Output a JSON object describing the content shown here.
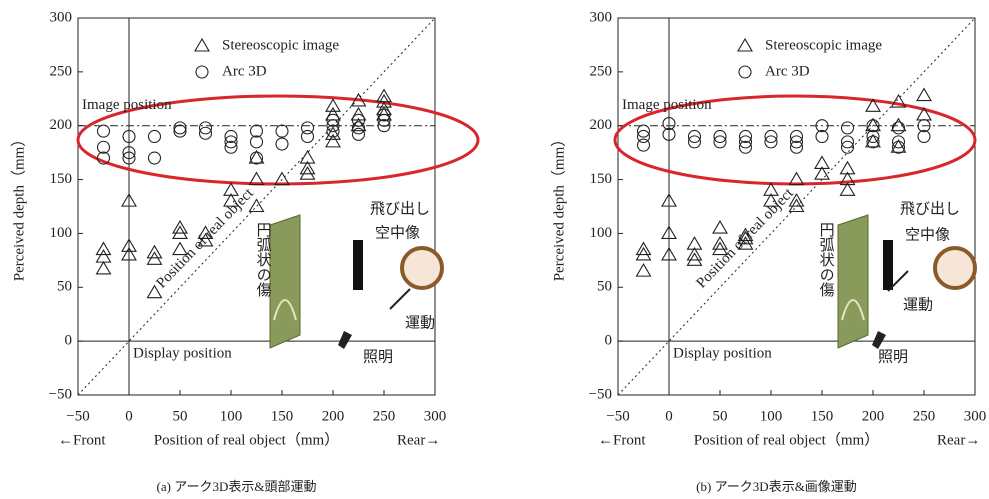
{
  "chart_data": [
    {
      "type": "scatter",
      "xlim": [
        -50,
        300
      ],
      "ylim": [
        -50,
        300
      ],
      "xticks": [
        {
          "value": -50,
          "label": "−50"
        },
        0,
        50,
        100,
        150,
        200,
        250,
        300
      ],
      "yticks": [
        {
          "value": -50,
          "label": "−50"
        },
        0,
        50,
        100,
        150,
        200,
        250,
        300
      ],
      "ylabel": "Perceived depth（mm）",
      "xlabel": [
        "←Front",
        "Position of real object（mm）",
        "Rear→"
      ],
      "image_position": 200,
      "annotations": {
        "image": "Image position",
        "display": "Display position",
        "diagonal": "Position of real object"
      },
      "illustration": {
        "popout": "飛び出し",
        "aerial": "空中像",
        "scratch": "円弧状の傷",
        "light": "照明",
        "motion": "運動"
      },
      "caption": "(a) アーク3D表示&頭部運動",
      "series": [
        {
          "name": "Stereoscopic image",
          "marker": "triangle",
          "color": "#222",
          "x": [
            -25,
            -25,
            -25,
            0,
            0,
            0,
            25,
            25,
            25,
            50,
            50,
            50,
            75,
            75,
            100,
            100,
            125,
            125,
            125,
            150,
            175,
            175,
            175,
            200,
            200,
            200,
            200,
            225,
            225,
            225,
            250,
            250,
            250,
            250
          ],
          "values": [
            85,
            78,
            67,
            130,
            88,
            80,
            82,
            76,
            45,
            105,
            100,
            85,
            100,
            93,
            140,
            130,
            170,
            150,
            125,
            150,
            170,
            160,
            155,
            218,
            210,
            192,
            185,
            223,
            210,
            200,
            227,
            222,
            215,
            210
          ]
        },
        {
          "name": "Arc 3D",
          "marker": "circle",
          "color": "#222",
          "x": [
            -25,
            -25,
            -25,
            0,
            0,
            0,
            25,
            25,
            50,
            50,
            75,
            75,
            100,
            100,
            100,
            125,
            125,
            125,
            150,
            150,
            175,
            175,
            200,
            200,
            200,
            225,
            225,
            225,
            250,
            250,
            250
          ],
          "values": [
            195,
            180,
            170,
            190,
            175,
            170,
            190,
            170,
            198,
            195,
            198,
            193,
            190,
            185,
            180,
            195,
            185,
            170,
            195,
            183,
            198,
            190,
            205,
            200,
            195,
            205,
            198,
            192,
            210,
            205,
            200
          ]
        }
      ]
    },
    {
      "type": "scatter",
      "xlim": [
        -50,
        300
      ],
      "ylim": [
        -50,
        300
      ],
      "xticks": [
        {
          "value": -50,
          "label": "−50"
        },
        0,
        50,
        100,
        150,
        200,
        250,
        300
      ],
      "yticks": [
        {
          "value": -50,
          "label": "−50"
        },
        0,
        50,
        100,
        150,
        200,
        250,
        300
      ],
      "ylabel": "Perceived depth（mm）",
      "xlabel": [
        "←Front",
        "Position of real object（mm）",
        "Rear→"
      ],
      "image_position": 200,
      "annotations": {
        "image": "Image position",
        "display": "Display position",
        "diagonal": "Position of real object"
      },
      "illustration": {
        "popout": "飛び出し",
        "aerial": "空中像",
        "scratch": "円弧状の傷",
        "light": "照明",
        "motion": "運動"
      },
      "caption": "(b) アーク3D表示&画像運動",
      "series": [
        {
          "name": "Stereoscopic image",
          "marker": "triangle",
          "color": "#222",
          "x": [
            -25,
            -25,
            -25,
            0,
            0,
            0,
            25,
            25,
            25,
            50,
            50,
            50,
            75,
            75,
            75,
            100,
            100,
            125,
            125,
            125,
            150,
            150,
            175,
            175,
            175,
            200,
            200,
            200,
            225,
            225,
            225,
            250,
            250
          ],
          "values": [
            85,
            80,
            65,
            130,
            100,
            80,
            90,
            80,
            75,
            105,
            90,
            85,
            98,
            95,
            90,
            140,
            130,
            150,
            130,
            125,
            165,
            155,
            160,
            150,
            140,
            218,
            200,
            185,
            222,
            200,
            180,
            228,
            210
          ]
        },
        {
          "name": "Arc 3D",
          "marker": "circle",
          "color": "#222",
          "x": [
            -25,
            -25,
            -25,
            0,
            0,
            25,
            25,
            50,
            50,
            75,
            75,
            75,
            100,
            100,
            125,
            125,
            125,
            150,
            150,
            175,
            175,
            175,
            200,
            200,
            200,
            225,
            225,
            225,
            250,
            250
          ],
          "values": [
            195,
            190,
            182,
            202,
            192,
            190,
            185,
            190,
            185,
            190,
            185,
            180,
            190,
            185,
            190,
            185,
            180,
            200,
            190,
            198,
            185,
            180,
            200,
            190,
            185,
            198,
            185,
            180,
            200,
            190
          ]
        }
      ]
    }
  ]
}
